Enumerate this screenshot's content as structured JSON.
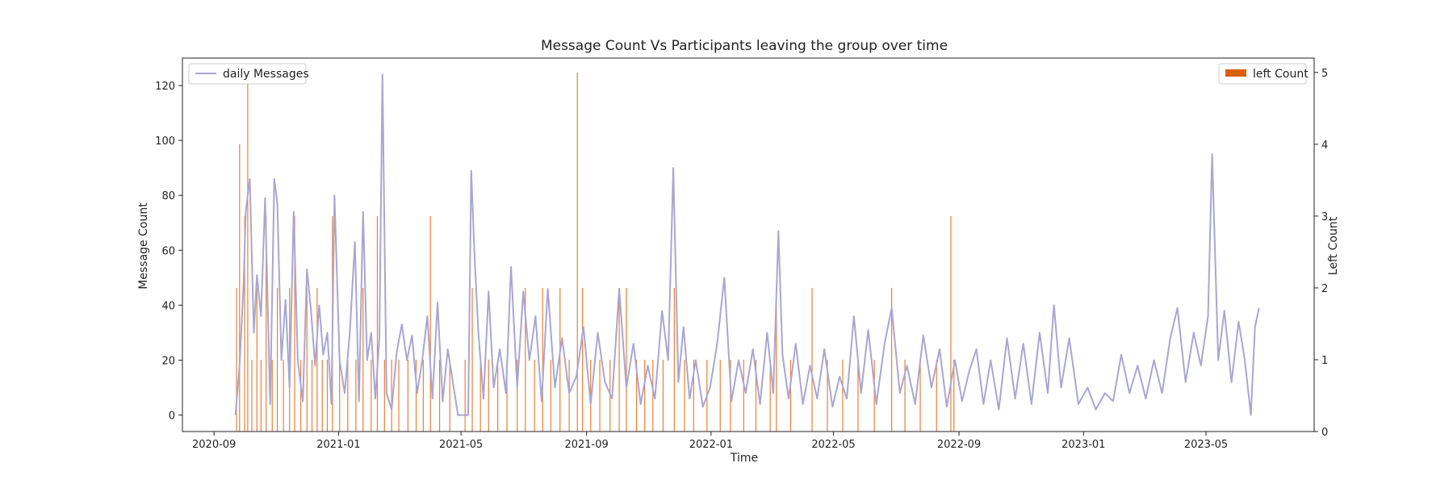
{
  "chart_data": {
    "type": "line",
    "title": "Message Count Vs Participants leaving the group over time",
    "xlabel": "Time",
    "ylabel": "Message Count",
    "y2label": "Left Count",
    "x_ticks": [
      "2020-09",
      "2021-01",
      "2021-05",
      "2021-09",
      "2022-01",
      "2022-05",
      "2022-09",
      "2023-01",
      "2023-05"
    ],
    "x_range": [
      "2020-08-01",
      "2023-08-15"
    ],
    "ylim": [
      -6,
      130
    ],
    "yticks": [
      0,
      20,
      40,
      60,
      80,
      100,
      120
    ],
    "y2lim": [
      0,
      5.2
    ],
    "y2ticks": [
      0,
      1,
      2,
      3,
      4,
      5
    ],
    "grid": false,
    "colors": {
      "messages": "#a9a6d1",
      "left": "#e8803a",
      "legend_left": "#d95f02"
    },
    "series": [
      {
        "name": "daily Messages",
        "axis": "left",
        "kind": "line",
        "legend_position": "upper left",
        "points": [
          [
            "2020-09-22",
            0
          ],
          [
            "2020-09-26",
            18
          ],
          [
            "2020-09-30",
            48
          ],
          [
            "2020-10-02",
            74
          ],
          [
            "2020-10-06",
            86
          ],
          [
            "2020-10-10",
            30
          ],
          [
            "2020-10-13",
            51
          ],
          [
            "2020-10-17",
            36
          ],
          [
            "2020-10-21",
            79
          ],
          [
            "2020-10-26",
            4
          ],
          [
            "2020-10-30",
            86
          ],
          [
            "2020-11-02",
            77
          ],
          [
            "2020-11-06",
            20
          ],
          [
            "2020-11-10",
            42
          ],
          [
            "2020-11-14",
            10
          ],
          [
            "2020-11-18",
            74
          ],
          [
            "2020-11-22",
            20
          ],
          [
            "2020-11-27",
            5
          ],
          [
            "2020-12-01",
            53
          ],
          [
            "2020-12-05",
            38
          ],
          [
            "2020-12-09",
            18
          ],
          [
            "2020-12-13",
            40
          ],
          [
            "2020-12-17",
            22
          ],
          [
            "2020-12-21",
            30
          ],
          [
            "2020-12-25",
            4
          ],
          [
            "2020-12-28",
            80
          ],
          [
            "2021-01-02",
            20
          ],
          [
            "2021-01-07",
            8
          ],
          [
            "2021-01-12",
            30
          ],
          [
            "2021-01-17",
            63
          ],
          [
            "2021-01-21",
            5
          ],
          [
            "2021-01-25",
            74
          ],
          [
            "2021-01-29",
            20
          ],
          [
            "2021-02-02",
            30
          ],
          [
            "2021-02-06",
            6
          ],
          [
            "2021-02-10",
            28
          ],
          [
            "2021-02-13",
            124
          ],
          [
            "2021-02-17",
            8
          ],
          [
            "2021-02-22",
            2
          ],
          [
            "2021-02-27",
            23
          ],
          [
            "2021-03-04",
            33
          ],
          [
            "2021-03-09",
            20
          ],
          [
            "2021-03-14",
            29
          ],
          [
            "2021-03-19",
            8
          ],
          [
            "2021-03-24",
            20
          ],
          [
            "2021-03-29",
            36
          ],
          [
            "2021-04-03",
            6
          ],
          [
            "2021-04-08",
            41
          ],
          [
            "2021-04-13",
            5
          ],
          [
            "2021-04-18",
            24
          ],
          [
            "2021-04-23",
            12
          ],
          [
            "2021-04-28",
            0
          ],
          [
            "2021-05-03",
            0
          ],
          [
            "2021-05-08",
            0
          ],
          [
            "2021-05-11",
            89
          ],
          [
            "2021-05-14",
            60
          ],
          [
            "2021-05-18",
            30
          ],
          [
            "2021-05-23",
            6
          ],
          [
            "2021-05-28",
            45
          ],
          [
            "2021-06-02",
            10
          ],
          [
            "2021-06-08",
            24
          ],
          [
            "2021-06-14",
            8
          ],
          [
            "2021-06-19",
            54
          ],
          [
            "2021-06-25",
            10
          ],
          [
            "2021-07-01",
            45
          ],
          [
            "2021-07-07",
            20
          ],
          [
            "2021-07-13",
            36
          ],
          [
            "2021-07-19",
            5
          ],
          [
            "2021-07-25",
            46
          ],
          [
            "2021-08-01",
            10
          ],
          [
            "2021-08-08",
            28
          ],
          [
            "2021-08-15",
            8
          ],
          [
            "2021-08-22",
            14
          ],
          [
            "2021-08-29",
            32
          ],
          [
            "2021-09-05",
            4
          ],
          [
            "2021-09-12",
            30
          ],
          [
            "2021-09-19",
            12
          ],
          [
            "2021-09-26",
            6
          ],
          [
            "2021-10-03",
            46
          ],
          [
            "2021-10-10",
            10
          ],
          [
            "2021-10-17",
            26
          ],
          [
            "2021-10-24",
            4
          ],
          [
            "2021-10-31",
            18
          ],
          [
            "2021-11-07",
            6
          ],
          [
            "2021-11-14",
            38
          ],
          [
            "2021-11-20",
            20
          ],
          [
            "2021-11-25",
            90
          ],
          [
            "2021-11-30",
            12
          ],
          [
            "2021-12-05",
            32
          ],
          [
            "2021-12-11",
            6
          ],
          [
            "2021-12-17",
            20
          ],
          [
            "2021-12-24",
            3
          ],
          [
            "2021-12-31",
            10
          ],
          [
            "2022-01-07",
            26
          ],
          [
            "2022-01-14",
            50
          ],
          [
            "2022-01-21",
            5
          ],
          [
            "2022-01-28",
            20
          ],
          [
            "2022-02-04",
            8
          ],
          [
            "2022-02-11",
            24
          ],
          [
            "2022-02-18",
            4
          ],
          [
            "2022-02-25",
            30
          ],
          [
            "2022-03-03",
            8
          ],
          [
            "2022-03-08",
            67
          ],
          [
            "2022-03-12",
            22
          ],
          [
            "2022-03-18",
            6
          ],
          [
            "2022-03-25",
            26
          ],
          [
            "2022-04-01",
            4
          ],
          [
            "2022-04-08",
            18
          ],
          [
            "2022-04-15",
            6
          ],
          [
            "2022-04-22",
            24
          ],
          [
            "2022-04-30",
            3
          ],
          [
            "2022-05-07",
            14
          ],
          [
            "2022-05-14",
            6
          ],
          [
            "2022-05-21",
            36
          ],
          [
            "2022-05-28",
            8
          ],
          [
            "2022-06-04",
            31
          ],
          [
            "2022-06-12",
            4
          ],
          [
            "2022-06-20",
            26
          ],
          [
            "2022-06-27",
            39
          ],
          [
            "2022-07-05",
            8
          ],
          [
            "2022-07-12",
            18
          ],
          [
            "2022-07-20",
            4
          ],
          [
            "2022-07-28",
            29
          ],
          [
            "2022-08-05",
            10
          ],
          [
            "2022-08-13",
            24
          ],
          [
            "2022-08-20",
            3
          ],
          [
            "2022-08-28",
            20
          ],
          [
            "2022-09-04",
            5
          ],
          [
            "2022-09-11",
            16
          ],
          [
            "2022-09-18",
            24
          ],
          [
            "2022-09-25",
            4
          ],
          [
            "2022-10-02",
            20
          ],
          [
            "2022-10-10",
            2
          ],
          [
            "2022-10-18",
            28
          ],
          [
            "2022-10-26",
            6
          ],
          [
            "2022-11-03",
            26
          ],
          [
            "2022-11-11",
            4
          ],
          [
            "2022-11-19",
            30
          ],
          [
            "2022-11-27",
            8
          ],
          [
            "2022-12-03",
            40
          ],
          [
            "2022-12-10",
            10
          ],
          [
            "2022-12-18",
            28
          ],
          [
            "2022-12-27",
            4
          ],
          [
            "2023-01-05",
            10
          ],
          [
            "2023-01-13",
            2
          ],
          [
            "2023-01-22",
            8
          ],
          [
            "2023-01-30",
            5
          ],
          [
            "2023-02-07",
            22
          ],
          [
            "2023-02-15",
            8
          ],
          [
            "2023-02-23",
            18
          ],
          [
            "2023-03-03",
            6
          ],
          [
            "2023-03-11",
            20
          ],
          [
            "2023-03-19",
            8
          ],
          [
            "2023-03-27",
            28
          ],
          [
            "2023-04-03",
            39
          ],
          [
            "2023-04-11",
            12
          ],
          [
            "2023-04-19",
            30
          ],
          [
            "2023-04-26",
            18
          ],
          [
            "2023-05-03",
            36
          ],
          [
            "2023-05-07",
            95
          ],
          [
            "2023-05-13",
            20
          ],
          [
            "2023-05-19",
            38
          ],
          [
            "2023-05-26",
            12
          ],
          [
            "2023-06-02",
            34
          ],
          [
            "2023-06-08",
            20
          ],
          [
            "2023-06-14",
            0
          ],
          [
            "2023-06-18",
            32
          ],
          [
            "2023-06-22",
            39
          ]
        ]
      },
      {
        "name": "left Count",
        "axis": "right",
        "kind": "bar",
        "legend_position": "upper right",
        "points": [
          [
            "2020-09-23",
            2
          ],
          [
            "2020-09-26",
            4
          ],
          [
            "2020-10-01",
            3
          ],
          [
            "2020-10-04",
            5
          ],
          [
            "2020-10-08",
            1
          ],
          [
            "2020-10-13",
            2
          ],
          [
            "2020-10-17",
            1
          ],
          [
            "2020-10-22",
            3
          ],
          [
            "2020-10-28",
            1
          ],
          [
            "2020-11-02",
            2
          ],
          [
            "2020-11-08",
            1
          ],
          [
            "2020-11-14",
            2
          ],
          [
            "2020-11-19",
            3
          ],
          [
            "2020-11-25",
            1
          ],
          [
            "2020-12-01",
            2
          ],
          [
            "2020-12-06",
            1
          ],
          [
            "2020-12-11",
            2
          ],
          [
            "2020-12-16",
            1
          ],
          [
            "2020-12-21",
            1
          ],
          [
            "2020-12-26",
            3
          ],
          [
            "2021-01-02",
            1
          ],
          [
            "2021-01-10",
            1
          ],
          [
            "2021-01-18",
            1
          ],
          [
            "2021-01-25",
            2
          ],
          [
            "2021-02-02",
            1
          ],
          [
            "2021-02-08",
            3
          ],
          [
            "2021-02-15",
            1
          ],
          [
            "2021-02-22",
            1
          ],
          [
            "2021-03-01",
            1
          ],
          [
            "2021-03-10",
            1
          ],
          [
            "2021-03-18",
            1
          ],
          [
            "2021-03-25",
            1
          ],
          [
            "2021-04-01",
            3
          ],
          [
            "2021-04-10",
            1
          ],
          [
            "2021-04-20",
            1
          ],
          [
            "2021-05-05",
            1
          ],
          [
            "2021-05-12",
            2
          ],
          [
            "2021-05-20",
            1
          ],
          [
            "2021-05-28",
            1
          ],
          [
            "2021-06-06",
            1
          ],
          [
            "2021-06-15",
            1
          ],
          [
            "2021-06-25",
            1
          ],
          [
            "2021-07-03",
            2
          ],
          [
            "2021-07-12",
            1
          ],
          [
            "2021-07-20",
            2
          ],
          [
            "2021-07-28",
            1
          ],
          [
            "2021-08-06",
            2
          ],
          [
            "2021-08-15",
            1
          ],
          [
            "2021-08-23",
            5
          ],
          [
            "2021-08-28",
            2
          ],
          [
            "2021-09-05",
            1
          ],
          [
            "2021-09-14",
            1
          ],
          [
            "2021-09-24",
            1
          ],
          [
            "2021-10-03",
            2
          ],
          [
            "2021-10-10",
            2
          ],
          [
            "2021-10-20",
            1
          ],
          [
            "2021-10-28",
            1
          ],
          [
            "2021-11-05",
            1
          ],
          [
            "2021-11-15",
            1
          ],
          [
            "2021-11-26",
            2
          ],
          [
            "2021-12-06",
            1
          ],
          [
            "2021-12-15",
            1
          ],
          [
            "2021-12-28",
            1
          ],
          [
            "2022-01-10",
            1
          ],
          [
            "2022-01-20",
            1
          ],
          [
            "2022-02-02",
            1
          ],
          [
            "2022-02-14",
            1
          ],
          [
            "2022-02-28",
            1
          ],
          [
            "2022-03-06",
            2
          ],
          [
            "2022-03-20",
            1
          ],
          [
            "2022-04-10",
            2
          ],
          [
            "2022-04-25",
            1
          ],
          [
            "2022-05-10",
            1
          ],
          [
            "2022-05-25",
            1
          ],
          [
            "2022-06-10",
            1
          ],
          [
            "2022-06-27",
            2
          ],
          [
            "2022-07-10",
            1
          ],
          [
            "2022-07-25",
            1
          ],
          [
            "2022-08-10",
            1
          ],
          [
            "2022-08-24",
            3
          ],
          [
            "2022-08-27",
            1
          ]
        ]
      }
    ]
  }
}
